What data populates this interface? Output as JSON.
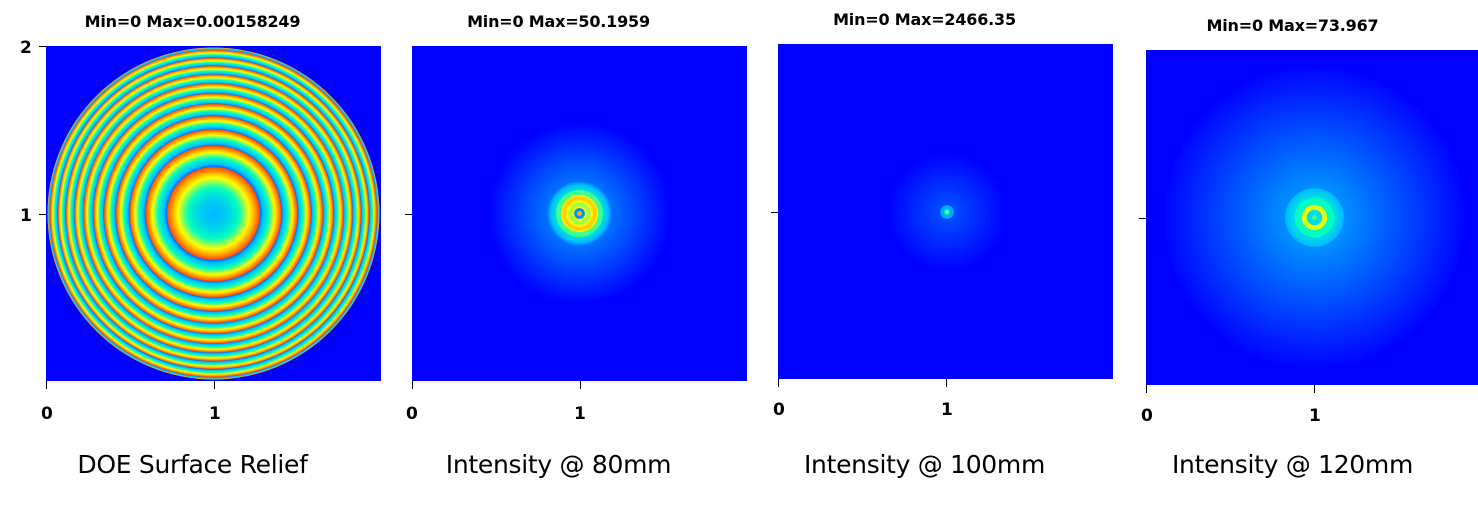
{
  "chart_data": [
    {
      "type": "heatmap",
      "title": "DOE Surface Relief",
      "stats": "Min=0  Max=0.00158249",
      "min": 0,
      "max": 0.00158249,
      "xlim": [
        0,
        2
      ],
      "ylim": [
        0,
        2
      ],
      "x_ticks": [
        "0",
        "1"
      ],
      "y_ticks": [
        "1",
        "2"
      ],
      "pattern": "concentric-rings"
    },
    {
      "type": "heatmap",
      "title": "Intensity @ 80mm",
      "stats": "Min=0  Max=50.1959",
      "min": 0,
      "max": 50.1959,
      "xlim": [
        0,
        2
      ],
      "ylim": [
        0,
        2
      ],
      "x_ticks": [
        "0",
        "1"
      ],
      "y_ticks": [],
      "pattern": "focal-ring-large"
    },
    {
      "type": "heatmap",
      "title": "Intensity @ 100mm",
      "stats": "Min=0  Max=2466.35",
      "min": 0,
      "max": 2466.35,
      "xlim": [
        0,
        2
      ],
      "ylim": [
        0,
        2
      ],
      "x_ticks": [
        "0",
        "1"
      ],
      "y_ticks": [],
      "pattern": "focal-spot"
    },
    {
      "type": "heatmap",
      "title": "Intensity @ 120mm",
      "stats": "Min=0  Max=73.967",
      "min": 0,
      "max": 73.967,
      "xlim": [
        0,
        2
      ],
      "ylim": [
        0,
        2
      ],
      "x_ticks": [
        "0",
        "1"
      ],
      "y_ticks": [],
      "pattern": "focal-ring-medium"
    }
  ],
  "colors": {
    "background": "#0000ff",
    "colormap": [
      "#0000ff",
      "#00bfff",
      "#00ffc0",
      "#ffff00",
      "#ff8000",
      "#ff0000"
    ]
  }
}
